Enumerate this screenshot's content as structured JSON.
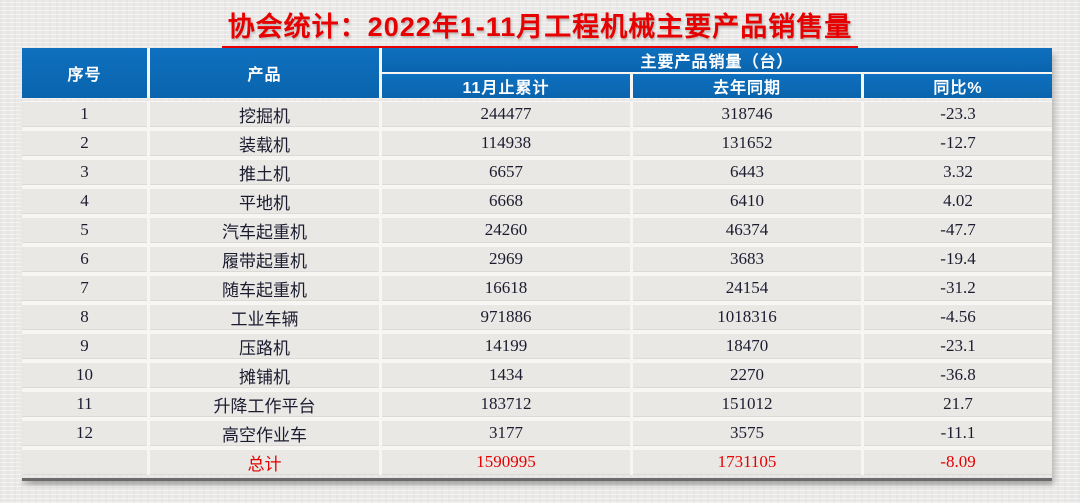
{
  "colors": {
    "title_red": "#e60000",
    "header_blue": "#0c6ab8",
    "body_text": "#1c1c30",
    "total_red": "#e60000"
  },
  "chart_data": {
    "type": "table",
    "title": "协会统计：2022年1-11月工程机械主要产品销售量",
    "group_header": "主要产品销量（台）",
    "columns": [
      "序号",
      "产品",
      "11月止累计",
      "去年同期",
      "同比%"
    ],
    "rows": [
      {
        "no": "1",
        "product": "挖掘机",
        "cumulative": "244477",
        "previous": "318746",
        "yoy": "-23.3"
      },
      {
        "no": "2",
        "product": "装载机",
        "cumulative": "114938",
        "previous": "131652",
        "yoy": "-12.7"
      },
      {
        "no": "3",
        "product": "推土机",
        "cumulative": "6657",
        "previous": "6443",
        "yoy": "3.32"
      },
      {
        "no": "4",
        "product": "平地机",
        "cumulative": "6668",
        "previous": "6410",
        "yoy": "4.02"
      },
      {
        "no": "5",
        "product": "汽车起重机",
        "cumulative": "24260",
        "previous": "46374",
        "yoy": "-47.7"
      },
      {
        "no": "6",
        "product": "履带起重机",
        "cumulative": "2969",
        "previous": "3683",
        "yoy": "-19.4"
      },
      {
        "no": "7",
        "product": "随车起重机",
        "cumulative": "16618",
        "previous": "24154",
        "yoy": "-31.2"
      },
      {
        "no": "8",
        "product": "工业车辆",
        "cumulative": "971886",
        "previous": "1018316",
        "yoy": "-4.56"
      },
      {
        "no": "9",
        "product": "压路机",
        "cumulative": "14199",
        "previous": "18470",
        "yoy": "-23.1"
      },
      {
        "no": "10",
        "product": "摊铺机",
        "cumulative": "1434",
        "previous": "2270",
        "yoy": "-36.8"
      },
      {
        "no": "11",
        "product": "升降工作平台",
        "cumulative": "183712",
        "previous": "151012",
        "yoy": "21.7"
      },
      {
        "no": "12",
        "product": "高空作业车",
        "cumulative": "3177",
        "previous": "3575",
        "yoy": "-11.1"
      }
    ],
    "total": {
      "label": "总计",
      "cumulative": "1590995",
      "previous": "1731105",
      "yoy": "-8.09"
    }
  }
}
